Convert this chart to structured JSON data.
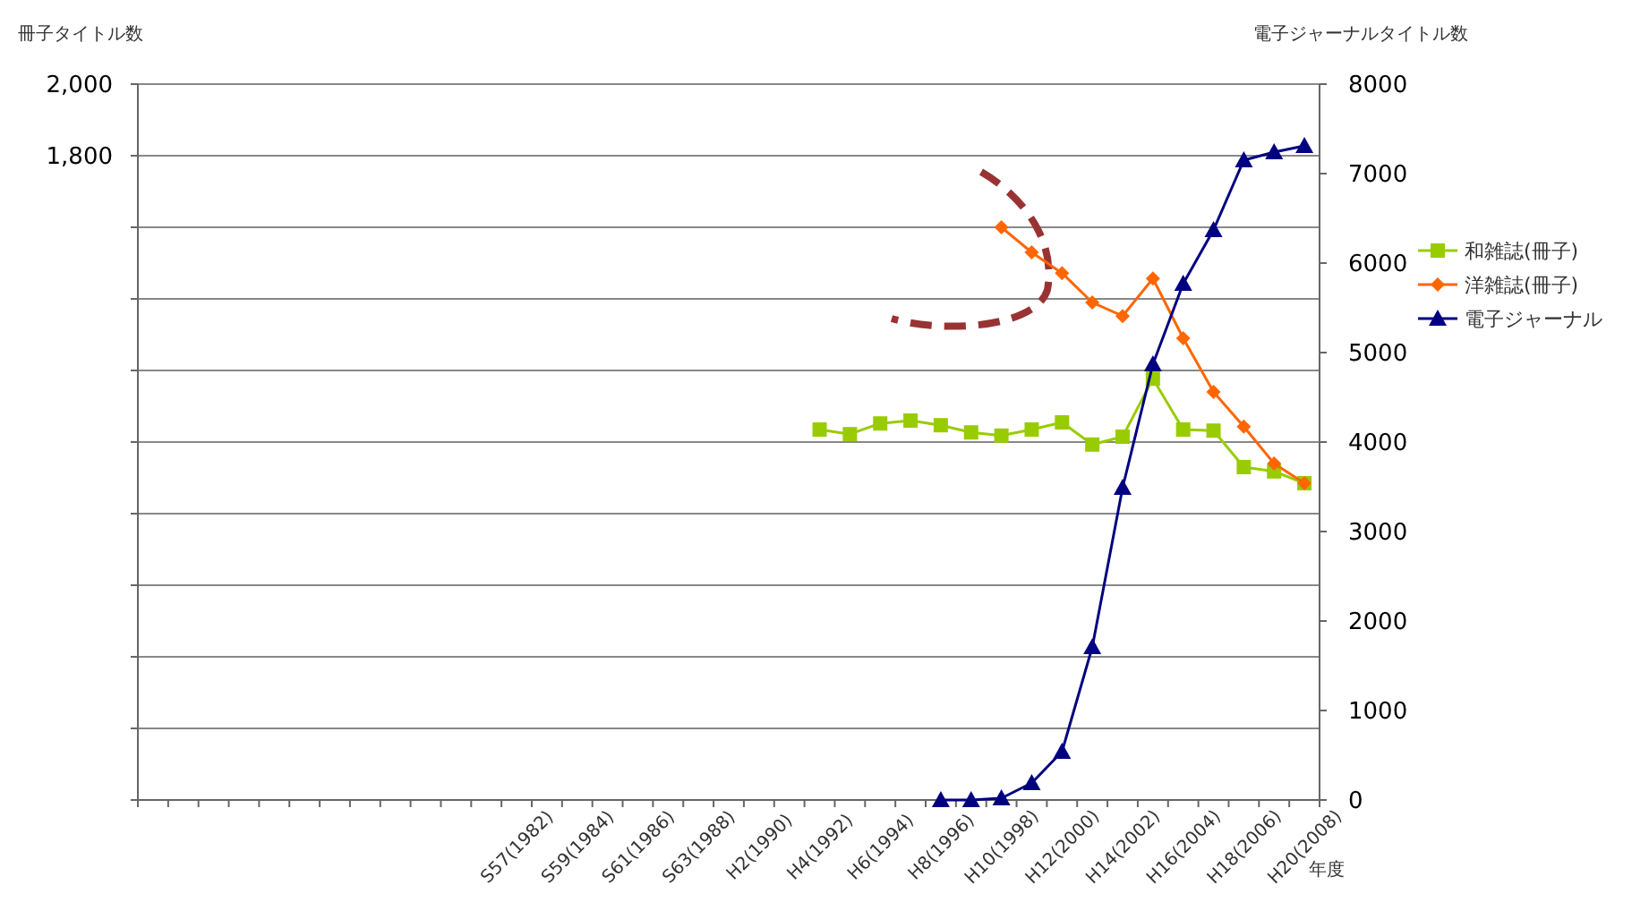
{
  "chart_data": {
    "type": "line",
    "ylabel": "冊子タイトル数",
    "y2label": "電子ジャーナルタイトル数",
    "xlabel": "年度",
    "categories": [
      null,
      null,
      null,
      null,
      null,
      null,
      null,
      null,
      null,
      null,
      null,
      null,
      "S57(1982)",
      null,
      "S59(1984)",
      null,
      "S61(1986)",
      null,
      "S63(1988)",
      null,
      "H2(1990)",
      null,
      "H4(1992)",
      null,
      "H6(1994)",
      null,
      "H8(1996)",
      null,
      "H10(1998)",
      null,
      "H12(2000)",
      null,
      "H14(2002)",
      null,
      "H16(2004)",
      null,
      "H18(2006)",
      null,
      "H20(2008)"
    ],
    "series": [
      {
        "name": "和雑誌(冊子)",
        "color": "#99cc00",
        "marker": "square",
        "values": [
          null,
          null,
          null,
          null,
          null,
          null,
          null,
          null,
          null,
          null,
          null,
          null,
          null,
          null,
          null,
          null,
          null,
          null,
          null,
          null,
          null,
          null,
          1035,
          1022,
          1052,
          1060,
          1047,
          1027,
          1018,
          1035,
          1055,
          993,
          1015,
          1177,
          1035,
          1032,
          930,
          918,
          885
        ]
      },
      {
        "name": "洋雑誌(冊子)",
        "color": "#ff6600",
        "marker": "diamond",
        "values": [
          null,
          null,
          null,
          null,
          null,
          null,
          null,
          null,
          null,
          null,
          null,
          null,
          null,
          null,
          null,
          null,
          null,
          null,
          null,
          null,
          null,
          null,
          null,
          null,
          null,
          null,
          null,
          null,
          1600,
          1530,
          1472,
          1390,
          1352,
          1457,
          1290,
          1140,
          1043,
          940,
          885
        ]
      },
      {
        "name": "電子ジャーナル",
        "color": "#000080",
        "marker": "triangle",
        "axis": "y2",
        "values": [
          null,
          null,
          null,
          null,
          null,
          null,
          null,
          null,
          null,
          null,
          null,
          null,
          null,
          null,
          null,
          null,
          null,
          null,
          null,
          null,
          null,
          null,
          null,
          null,
          null,
          null,
          0,
          0,
          20,
          190,
          540,
          1710,
          3490,
          4870,
          5770,
          6370,
          7150,
          7240,
          7310
        ]
      }
    ],
    "ylim": [
      0,
      2000
    ],
    "yticks": [
      {
        "value": 0,
        "label": null
      },
      {
        "value": 200,
        "label": null
      },
      {
        "value": 400,
        "label": null
      },
      {
        "value": 600,
        "label": null
      },
      {
        "value": 800,
        "label": null
      },
      {
        "value": 1000,
        "label": null
      },
      {
        "value": 1200,
        "label": null
      },
      {
        "value": 1400,
        "label": null
      },
      {
        "value": 1600,
        "label": null
      },
      {
        "value": 1800,
        "label": "1,800"
      },
      {
        "value": 2000,
        "label": "2,000"
      }
    ],
    "y2lim": [
      0,
      8000
    ],
    "y2ticks": [
      0,
      1000,
      2000,
      3000,
      4000,
      5000,
      6000,
      7000,
      8000
    ],
    "grid": "y",
    "legend": "right"
  }
}
